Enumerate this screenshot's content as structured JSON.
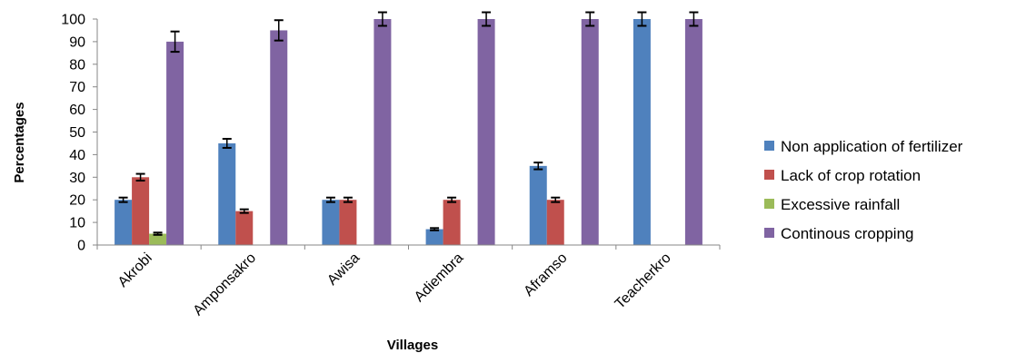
{
  "chart_data": {
    "type": "bar",
    "xlabel": "Villages",
    "ylabel": "Percentages",
    "ylim": [
      0,
      100
    ],
    "yticks": [
      0,
      10,
      20,
      30,
      40,
      50,
      60,
      70,
      80,
      90,
      100
    ],
    "categories": [
      "Akrobi",
      "Amponsakro",
      "Awisa",
      "Adiembra",
      "Aframso",
      "Teacherkro"
    ],
    "series": [
      {
        "name": "Non application of fertilizer",
        "color": "#4F81BD",
        "values": [
          20,
          45,
          20,
          7,
          35,
          100
        ],
        "errors": [
          1,
          2,
          1,
          0.5,
          1.5,
          3
        ]
      },
      {
        "name": "Lack of crop rotation",
        "color": "#C0504D",
        "values": [
          30,
          15,
          20,
          20,
          20,
          0
        ],
        "errors": [
          1.5,
          0.8,
          1,
          1,
          1,
          0
        ]
      },
      {
        "name": "Excessive rainfall",
        "color": "#9BBB59",
        "values": [
          5,
          0,
          0,
          0,
          0,
          0
        ],
        "errors": [
          0.5,
          0,
          0,
          0,
          0,
          0
        ]
      },
      {
        "name": "Continous cropping",
        "color": "#8064A2",
        "values": [
          90,
          95,
          100,
          100,
          100,
          100
        ],
        "errors": [
          4.5,
          4.5,
          3,
          3,
          3,
          3
        ]
      }
    ],
    "grid": false,
    "legend_position": "right"
  }
}
